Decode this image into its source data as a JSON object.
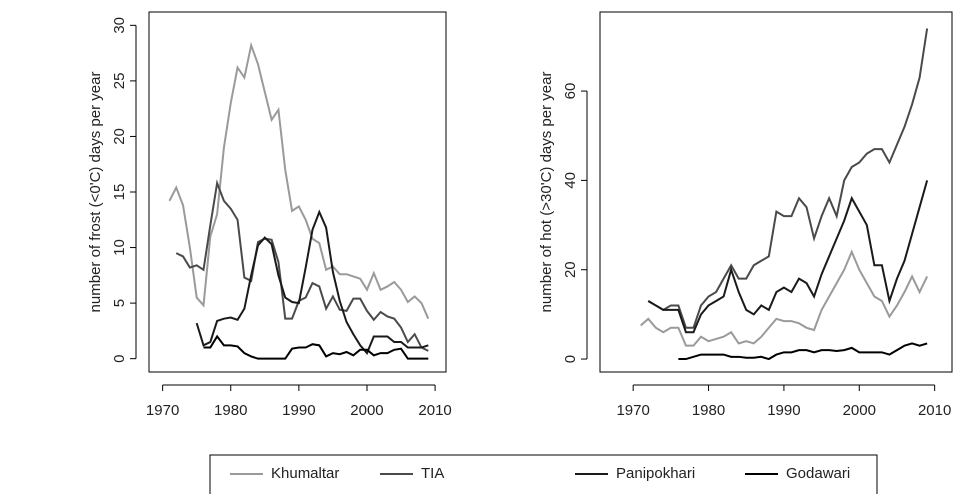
{
  "chart_data": [
    {
      "type": "line",
      "ylabel": "number of frost (<0'C) days per year",
      "xlim": [
        1968,
        2011.6
      ],
      "ylim": [
        -1.2,
        31.2
      ],
      "xticks": [
        1970,
        1980,
        1990,
        2000,
        2010
      ],
      "yticks": [
        0,
        5,
        10,
        15,
        20,
        25,
        30
      ],
      "series": [
        {
          "name": "Khumaltar",
          "color": "#9a9a9a",
          "x": [
            1971,
            1972,
            1973,
            1974,
            1975,
            1976,
            1977,
            1978,
            1979,
            1980,
            1981,
            1982,
            1983,
            1984,
            1985,
            1986,
            1987,
            1988,
            1989,
            1990,
            1991,
            1992,
            1993,
            1994,
            1995,
            1996,
            1997,
            1998,
            1999,
            2000,
            2001,
            2002,
            2003,
            2004,
            2005,
            2006,
            2007,
            2008,
            2009
          ],
          "values": [
            14.2,
            15.4,
            13.8,
            10,
            5.5,
            4.8,
            11,
            13,
            19,
            23,
            26.2,
            25.3,
            28.2,
            26.5,
            24,
            21.5,
            22.4,
            17,
            13.3,
            13.7,
            12.5,
            10.8,
            10.4,
            8,
            8.3,
            7.6,
            7.6,
            7.4,
            7.2,
            6.2,
            7.7,
            6.2,
            6.5,
            6.9,
            6.2,
            5.1,
            5.6,
            5,
            3.6
          ]
        },
        {
          "name": "TIA",
          "color": "#4a4a4a",
          "x": [
            1972,
            1973,
            1974,
            1975,
            1976,
            1977,
            1978,
            1979,
            1980,
            1981,
            1982,
            1983,
            1984,
            1985,
            1986,
            1987,
            1988,
            1989,
            1990,
            1991,
            1992,
            1993,
            1994,
            1995,
            1996,
            1997,
            1998,
            1999,
            2000,
            2001,
            2002,
            2003,
            2004,
            2005,
            2006,
            2007,
            2008,
            2009
          ],
          "values": [
            9.5,
            9.2,
            8.2,
            8.4,
            8,
            12,
            15.8,
            14.2,
            13.5,
            12.5,
            7.3,
            7,
            10.5,
            10.8,
            10.7,
            8.7,
            3.6,
            3.6,
            5.2,
            5.5,
            6.8,
            6.5,
            4.5,
            5.6,
            4.4,
            4.3,
            5.4,
            5.4,
            4.3,
            3.5,
            4.2,
            3.8,
            3.6,
            2.8,
            1.5,
            2.2,
            1,
            0.7
          ]
        },
        {
          "name": "Panipokhari",
          "color": "#1a1a1a",
          "x": [
            1975,
            1976,
            1977,
            1978,
            1979,
            1980,
            1981,
            1982,
            1983,
            1984,
            1985,
            1986,
            1987,
            1988,
            1989,
            1990,
            1991,
            1992,
            1993,
            1994,
            1995,
            1996,
            1997,
            1998,
            1999,
            2000,
            2001,
            2002,
            2003,
            2004,
            2005,
            2006,
            2007,
            2008,
            2009
          ],
          "values": [
            3.2,
            1.2,
            1.5,
            3.4,
            3.6,
            3.7,
            3.5,
            4.5,
            7.5,
            10.2,
            10.9,
            10.3,
            7.5,
            5.5,
            5.1,
            5,
            8.2,
            11.6,
            13.2,
            11.8,
            7.8,
            5.2,
            3.3,
            2.2,
            1.2,
            0.5,
            2,
            2,
            2,
            1.5,
            1.5,
            1,
            1,
            1,
            1.2
          ]
        },
        {
          "name": "Godawari",
          "color": "#000000",
          "x": [
            1976,
            1977,
            1978,
            1979,
            1980,
            1981,
            1982,
            1983,
            1984,
            1985,
            1986,
            1987,
            1988,
            1989,
            1990,
            1991,
            1992,
            1993,
            1994,
            1995,
            1996,
            1997,
            1998,
            1999,
            2000,
            2001,
            2002,
            2003,
            2004,
            2005,
            2006,
            2007,
            2008,
            2009
          ],
          "values": [
            1,
            1,
            2,
            1.2,
            1.2,
            1.1,
            0.5,
            0.2,
            0,
            0,
            0,
            0,
            0,
            0.9,
            1,
            1,
            1.3,
            1.2,
            0.2,
            0.5,
            0.4,
            0.6,
            0.3,
            0.8,
            0.8,
            0.3,
            0.5,
            0.5,
            0.8,
            0.9,
            0,
            0,
            0,
            0
          ]
        }
      ]
    },
    {
      "type": "line",
      "ylabel": "number of hot (>30'C) days per year",
      "xlim": [
        1965.6,
        2012.3
      ],
      "ylim": [
        -2.9,
        77.7
      ],
      "xticks": [
        1970,
        1980,
        1990,
        2000,
        2010
      ],
      "yticks": [
        0,
        20,
        40,
        60
      ],
      "series": [
        {
          "color": "#9a9a9a",
          "x": [
            1971,
            1972,
            1973,
            1974,
            1975,
            1976,
            1977,
            1978,
            1979,
            1980,
            1981,
            1982,
            1983,
            1984,
            1985,
            1986,
            1987,
            1988,
            1989,
            1990,
            1991,
            1992,
            1993,
            1994,
            1995,
            1996,
            1997,
            1998,
            1999,
            2000,
            2001,
            2002,
            2003,
            2004,
            2005,
            2006,
            2007,
            2008,
            2009
          ],
          "values": [
            7.5,
            9,
            7,
            6,
            7,
            7,
            3,
            3,
            5,
            4,
            4.5,
            5,
            6,
            3.5,
            4,
            3.5,
            5,
            7,
            9,
            8.5,
            8.5,
            8,
            7,
            6.5,
            11,
            14,
            17,
            20,
            24,
            20,
            17,
            14,
            13,
            9.5,
            12,
            15,
            18.5,
            15,
            18.5
          ]
        },
        {
          "color": "#4a4a4a",
          "x": [
            1972,
            1973,
            1974,
            1975,
            1976,
            1977,
            1978,
            1979,
            1980,
            1981,
            1982,
            1983,
            1984,
            1985,
            1986,
            1987,
            1988,
            1989,
            1990,
            1991,
            1992,
            1993,
            1994,
            1995,
            1996,
            1997,
            1998,
            1999,
            2000,
            2001,
            2002,
            2003,
            2004,
            2005,
            2006,
            2007,
            2008,
            2009
          ],
          "values": [
            13,
            12,
            11,
            12,
            12,
            7,
            7,
            12,
            14,
            15,
            18,
            21,
            18,
            18,
            21,
            22,
            23,
            33,
            32,
            32,
            36,
            34,
            27,
            32,
            36,
            32,
            40,
            43,
            44,
            46,
            47,
            47,
            44,
            48,
            52,
            57,
            63,
            74
          ]
        },
        {
          "color": "#1a1a1a",
          "x": [
            1972,
            1973,
            1974,
            1975,
            1976,
            1977,
            1978,
            1979,
            1980,
            1981,
            1982,
            1983,
            1984,
            1985,
            1986,
            1987,
            1988,
            1989,
            1990,
            1991,
            1992,
            1993,
            1994,
            1995,
            1996,
            1997,
            1998,
            1999,
            2000,
            2001,
            2002,
            2003,
            2004,
            2005,
            2006,
            2007,
            2008,
            2009
          ],
          "values": [
            13,
            12,
            11,
            11,
            11,
            6,
            6,
            10,
            12,
            13,
            14,
            20,
            15,
            11,
            10,
            12,
            11,
            15,
            16,
            15,
            18,
            17,
            14,
            19,
            23,
            27,
            31,
            36,
            33,
            30,
            21,
            21,
            13,
            18,
            22,
            28,
            34,
            40
          ]
        },
        {
          "color": "#000000",
          "x": [
            1976,
            1977,
            1978,
            1979,
            1980,
            1981,
            1982,
            1983,
            1984,
            1985,
            1986,
            1987,
            1988,
            1989,
            1990,
            1991,
            1992,
            1993,
            1994,
            1995,
            1996,
            1997,
            1998,
            1999,
            2000,
            2001,
            2002,
            2003,
            2004,
            2005,
            2006,
            2007,
            2008,
            2009
          ],
          "values": [
            0,
            0,
            0.5,
            1,
            1,
            1,
            1,
            0.5,
            0.5,
            0.3,
            0.3,
            0.5,
            0,
            1,
            1.5,
            1.5,
            2,
            2,
            1.5,
            2,
            2,
            1.8,
            2,
            2.5,
            1.5,
            1.5,
            1.5,
            1.5,
            1,
            2,
            3,
            3.5,
            3,
            3.5
          ]
        }
      ]
    }
  ]
}
